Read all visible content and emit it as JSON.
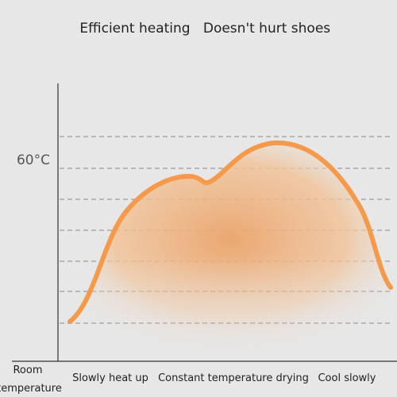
{
  "header": {
    "left": "Efficient heating",
    "right": "Doesn't hurt shoes"
  },
  "axis": {
    "y_label": "60°C",
    "origin_label_line1": "Room",
    "origin_label_line2": "temperature"
  },
  "phases": [
    "Slowly heat up",
    "Constant temperature drying",
    "Cool slowly"
  ]
}
